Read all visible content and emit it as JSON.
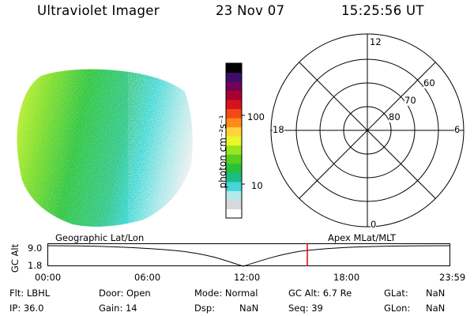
{
  "header": {
    "title": "Ultraviolet Imager",
    "date": "23 Nov 07",
    "time": "15:25:56 UT"
  },
  "image_panel": {
    "colors": {
      "green": "#22c43a",
      "cyan": "#35d7d7",
      "yellow": "#d6ff2a",
      "pale": "#e5eeee"
    }
  },
  "colorbar": {
    "unit_label": "photon cm⁻²s⁻¹",
    "ticks": [
      "100",
      "10"
    ],
    "colors": [
      "#ffffff",
      "#d8d8d8",
      "#b3e9ea",
      "#47d4d8",
      "#1bbd86",
      "#27c23a",
      "#57cf1e",
      "#9be422",
      "#eaf72a",
      "#ffd43a",
      "#ff8a1a",
      "#f24a15",
      "#d8121a",
      "#a90031",
      "#730059",
      "#3c0d6b",
      "#000000"
    ]
  },
  "polar_plot": {
    "mlt_labels": {
      "top": "12",
      "left": "18",
      "right": "6",
      "bottom": "0"
    },
    "lat_labels": [
      "60",
      "70",
      "80"
    ]
  },
  "timeline": {
    "left_title": "Geographic Lat/Lon",
    "right_title": "Apex MLat/MLT",
    "axis_label": "GC Alt",
    "y_labels": [
      "9.0",
      "1.8"
    ],
    "x_labels": [
      "00:00",
      "06:00",
      "12:00",
      "18:00",
      "23:59"
    ],
    "marker_color": "#e00000"
  },
  "footer": {
    "filter": "Flt: LBHL",
    "ip": "IP: 36.0",
    "door": "Door: Open",
    "gain": "Gain: 14",
    "mode": "Mode: Normal",
    "dsp_label": "Dsp:",
    "dsp_value": "NaN",
    "gc_alt": "GC Alt: 6.7 Re",
    "seq": "Seq: 39",
    "glat_label": "GLat:",
    "glat_value": "NaN",
    "glon_label": "GLon:",
    "glon_value": "NaN"
  }
}
